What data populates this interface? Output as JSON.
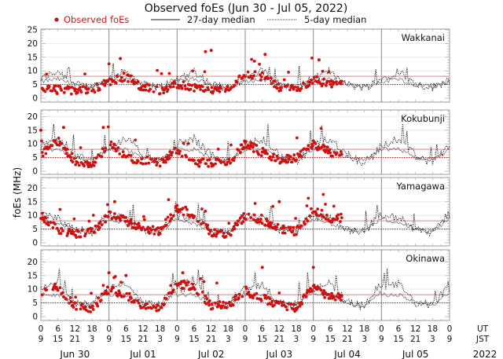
{
  "chart_data": {
    "type": "scatter",
    "title": "Observed foEs (Jun 30 - Jul 05, 2022)",
    "legend": [
      {
        "label": "Observed foEs",
        "marker": "dot",
        "color": "#cc1111"
      },
      {
        "label": "27-day median",
        "style": "solid-line",
        "color": "#111111"
      },
      {
        "label": "5-day median",
        "style": "dotted-line",
        "color": "#111111"
      }
    ],
    "legend_placement": "top",
    "ylabel": "foEs (MHz)",
    "ylim": [
      0,
      25
    ],
    "yticks_top_panel": [
      0,
      5,
      10,
      15,
      20,
      25
    ],
    "yticks_other_panels": [
      0,
      5,
      10,
      15,
      20
    ],
    "reference_lines": [
      {
        "value": 8,
        "style": "solid",
        "color": "#d9a0a0"
      },
      {
        "value": 5,
        "style": "dotted",
        "color": "#cc2222"
      }
    ],
    "x_axis": {
      "unit_rows": [
        "UT",
        "JST"
      ],
      "ut_ticks": [
        "0",
        "6",
        "12",
        "18",
        "0",
        "6",
        "12",
        "18",
        "0",
        "6",
        "12",
        "18",
        "0",
        "6",
        "12",
        "18",
        "0",
        "6",
        "12",
        "18",
        "0",
        "6",
        "12",
        "18",
        "0"
      ],
      "jst_ticks": [
        "9",
        "15",
        "21",
        "3",
        "9",
        "15",
        "21",
        "3",
        "9",
        "15",
        "21",
        "3",
        "9",
        "15",
        "21",
        "3",
        "9",
        "15",
        "21",
        "3",
        "9",
        "15",
        "21",
        "3",
        "9"
      ],
      "days": [
        "Jun 30",
        "Jul 01",
        "Jul 02",
        "Jul 03",
        "Jul 04",
        "Jul 05"
      ],
      "year": "2022",
      "xlim_hours_ut": [
        0,
        144
      ]
    },
    "grid": true,
    "observed_data_end_hour_ut": 106,
    "panels": [
      {
        "station": "Wakkanai",
        "observed_sample": {
          "hours": [
            0,
            6,
            12,
            18,
            24,
            30,
            36,
            42,
            48,
            54,
            60,
            66,
            72,
            78,
            84,
            90,
            96,
            102
          ],
          "foEs": [
            4,
            3,
            3,
            3,
            6,
            8,
            4,
            3,
            5,
            4,
            3,
            3,
            9,
            8,
            4,
            3,
            7,
            5
          ]
        },
        "outliers": [
          {
            "hour": 28,
            "foEs": 14.5
          },
          {
            "hour": 58,
            "foEs": 17
          },
          {
            "hour": 60,
            "foEs": 17.5
          },
          {
            "hour": 79,
            "foEs": 16
          },
          {
            "hour": 98,
            "foEs": 14
          }
        ],
        "median27_sample": {
          "hours": [
            0,
            6,
            12,
            18,
            24
          ],
          "foEs": [
            6,
            7,
            5,
            4,
            6
          ]
        },
        "median5_sample": {
          "hours": [
            0,
            6,
            12,
            18,
            24
          ],
          "foEs": [
            7,
            10,
            5,
            4,
            7
          ]
        }
      },
      {
        "station": "Kokubunji",
        "observed_sample": {
          "hours": [
            0,
            6,
            12,
            18,
            24,
            30,
            36,
            42,
            48,
            54,
            60,
            66,
            72,
            78,
            84,
            90,
            96,
            102
          ],
          "foEs": [
            6,
            11,
            4,
            2,
            10,
            5,
            4,
            3,
            8,
            3,
            3,
            3,
            10,
            7,
            4,
            5,
            10,
            7
          ]
        },
        "outliers": [
          {
            "hour": 0,
            "foEs": 15
          },
          {
            "hour": 8,
            "foEs": 16
          },
          {
            "hour": 22,
            "foEs": 16
          }
        ],
        "median27_sample": {
          "hours": [
            0,
            6,
            12,
            18,
            24
          ],
          "foEs": [
            8,
            8,
            5,
            4,
            8
          ]
        },
        "median5_sample": {
          "hours": [
            0,
            6,
            12,
            18,
            24
          ],
          "foEs": [
            9,
            12,
            6,
            3,
            9
          ]
        }
      },
      {
        "station": "Yamagawa",
        "observed_sample": {
          "hours": [
            0,
            6,
            12,
            18,
            24,
            30,
            36,
            42,
            48,
            54,
            60,
            66,
            72,
            78,
            84,
            90,
            96,
            102
          ],
          "foEs": [
            10,
            5,
            3,
            4,
            10,
            8,
            5,
            4,
            13,
            9,
            4,
            3,
            10,
            8,
            5,
            4,
            12,
            9
          ]
        },
        "outliers": [
          {
            "hour": 26,
            "foEs": 15
          },
          {
            "hour": 51,
            "foEs": 13
          },
          {
            "hour": 84,
            "foEs": 15
          }
        ],
        "median27_sample": {
          "hours": [
            0,
            6,
            12,
            18,
            24
          ],
          "foEs": [
            9,
            7,
            5,
            4,
            9
          ]
        },
        "median5_sample": {
          "hours": [
            0,
            6,
            12,
            18,
            24
          ],
          "foEs": [
            10,
            9,
            5,
            4,
            11
          ]
        }
      },
      {
        "station": "Okinawa",
        "observed_sample": {
          "hours": [
            0,
            6,
            12,
            18,
            24,
            30,
            36,
            42,
            48,
            54,
            60,
            66,
            72,
            78,
            84,
            90,
            96,
            102
          ],
          "foEs": [
            9,
            11,
            4,
            3,
            10,
            8,
            4,
            3,
            12,
            11,
            4,
            4,
            9,
            7,
            4,
            3,
            11,
            7
          ]
        },
        "outliers": [
          {
            "hour": 24,
            "foEs": 16
          },
          {
            "hour": 30,
            "foEs": 15
          },
          {
            "hour": 50,
            "foEs": 16
          },
          {
            "hour": 78,
            "foEs": 18
          },
          {
            "hour": 96,
            "foEs": 18
          }
        ],
        "median27_sample": {
          "hours": [
            0,
            6,
            12,
            18,
            24
          ],
          "foEs": [
            8,
            8,
            5,
            4,
            9
          ]
        },
        "median5_sample": {
          "hours": [
            0,
            6,
            12,
            18,
            24
          ],
          "foEs": [
            10,
            12,
            5,
            4,
            12
          ]
        }
      }
    ]
  }
}
